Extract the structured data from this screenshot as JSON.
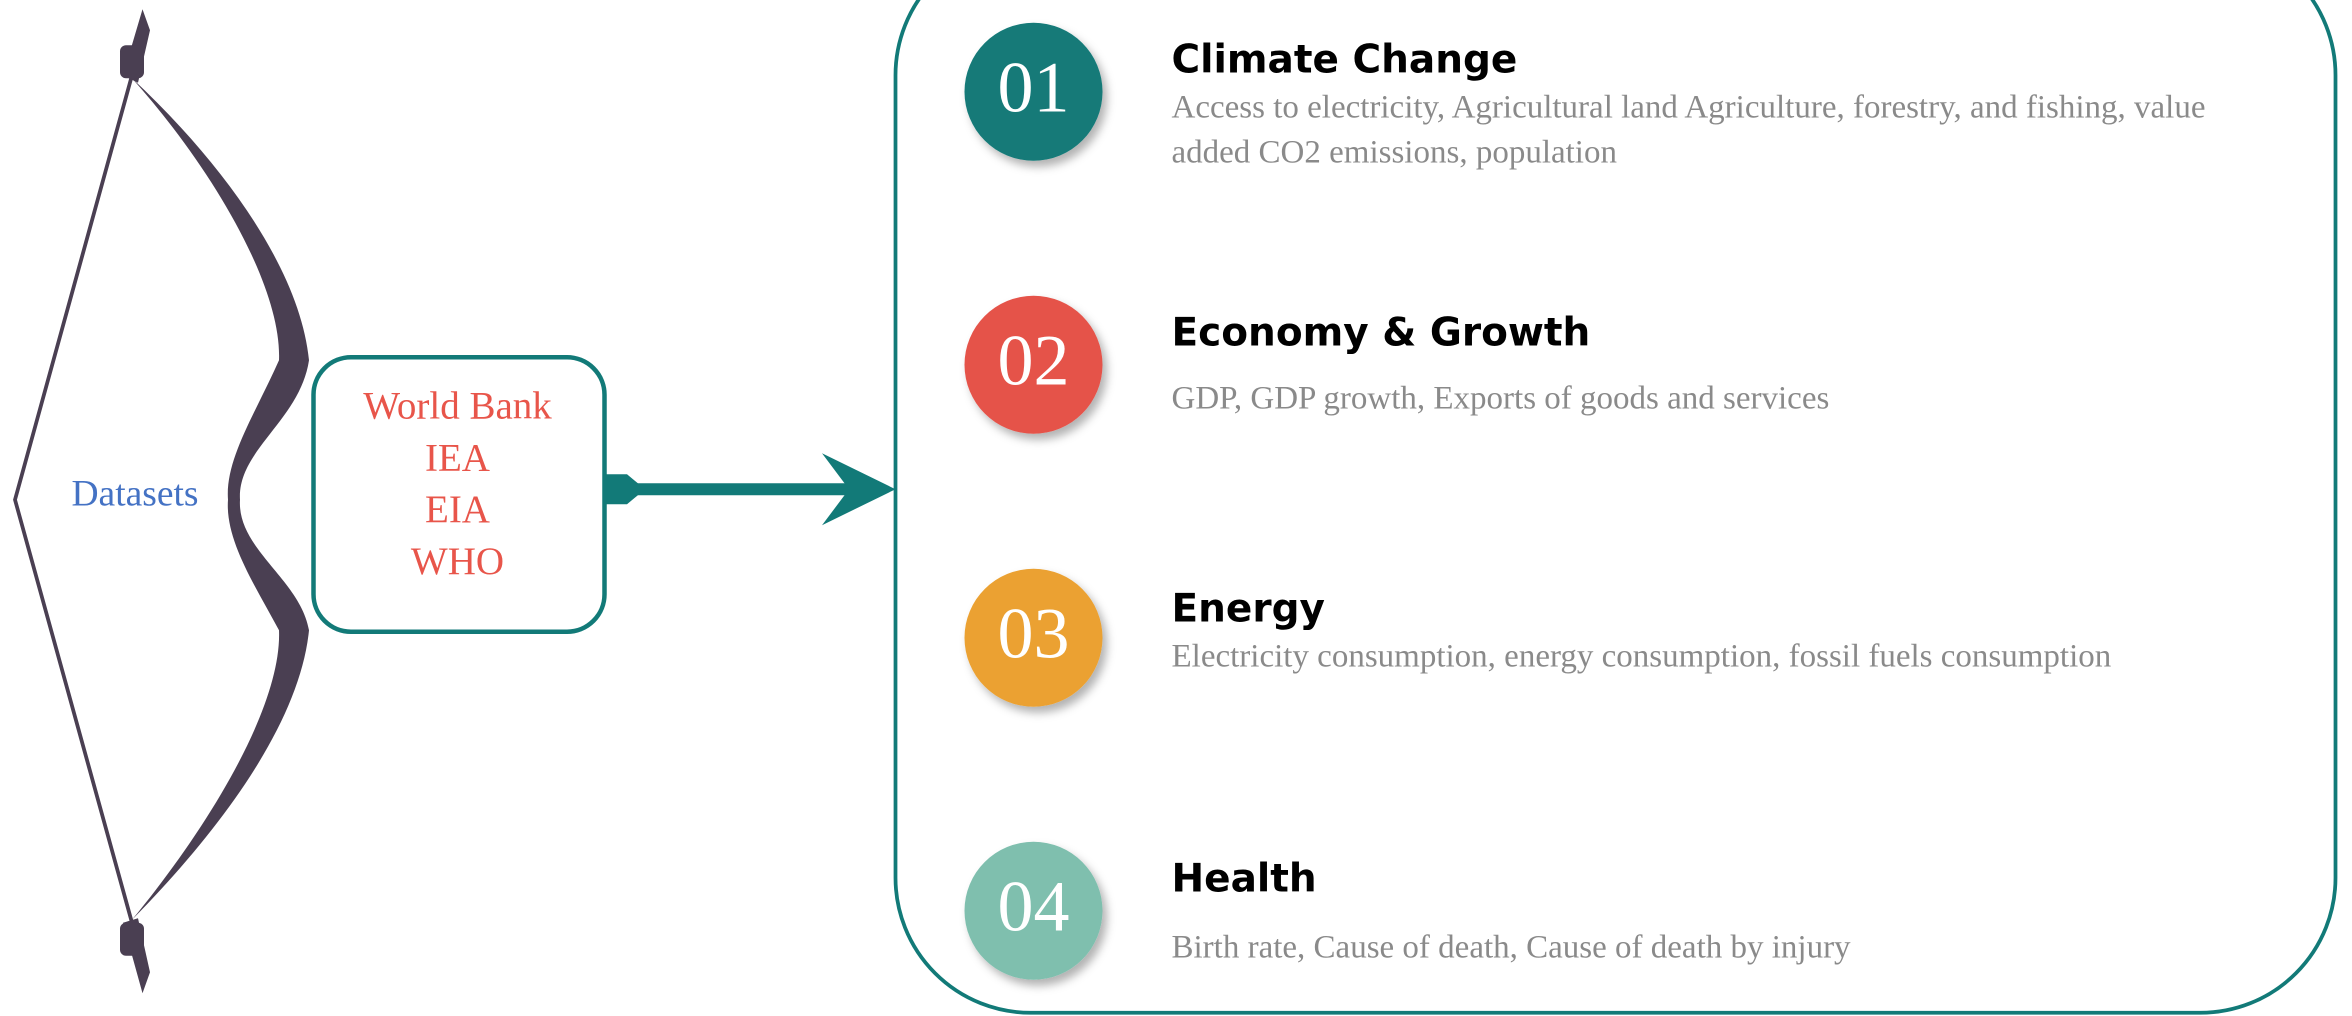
{
  "bow": {
    "label": "Datasets"
  },
  "sources": [
    "World Bank",
    "IEA",
    "EIA",
    "WHO"
  ],
  "items": [
    {
      "number": "01",
      "title": "Climate Change",
      "description": "Access to electricity, Agricultural land Agriculture, forestry, and fishing, value added CO2 emissions, population"
    },
    {
      "number": "02",
      "title": "Economy & Growth",
      "description": "GDP, GDP growth, Exports of goods and services"
    },
    {
      "number": "03",
      "title": "Energy",
      "description": "Electricity consumption, energy consumption, fossil fuels consumption"
    },
    {
      "number": "04",
      "title": "Health",
      "description": "Birth rate, Cause of death, Cause of death by injury"
    }
  ]
}
